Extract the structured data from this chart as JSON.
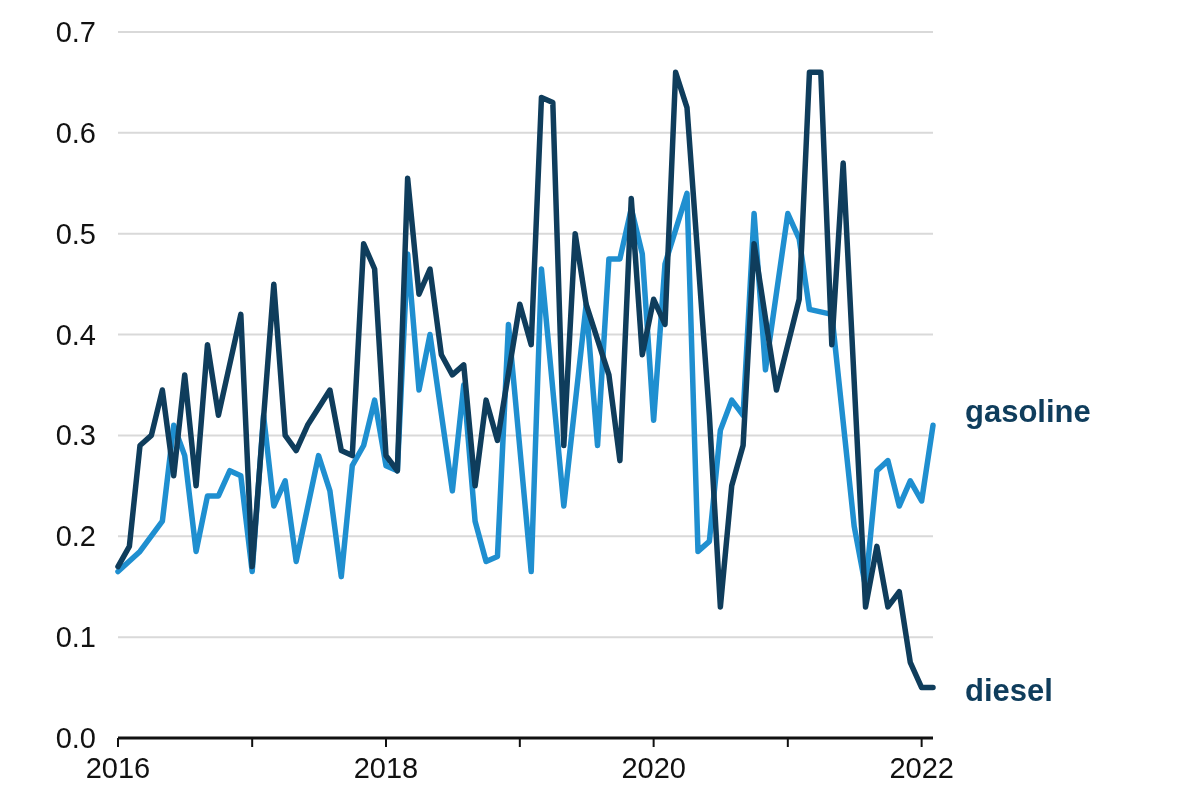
{
  "chart_data": {
    "type": "line",
    "xlim": [
      "2016-01",
      "2022-02"
    ],
    "ylim": [
      0,
      0.7
    ],
    "yticks": [
      {
        "value": 0,
        "label": "0.0"
      },
      0.1,
      0.2,
      0.3,
      0.4,
      0.5,
      0.6,
      0.7
    ],
    "xticks": [
      "2016",
      {
        "value": "2017",
        "label": null
      },
      "2018",
      {
        "value": "2019",
        "label": null
      },
      "2020",
      {
        "value": "2021",
        "label": null
      },
      "2022"
    ],
    "grid": "y",
    "line_style": "solid",
    "marker": "none",
    "series": [
      {
        "name": "gasoline",
        "color": "#1f8fd0",
        "x": [
          "2016-01",
          "2016-03",
          "2016-05",
          "2016-06",
          "2016-07",
          "2016-08",
          "2016-09",
          "2016-10",
          "2016-11",
          "2016-12",
          "2017-01",
          "2017-02",
          "2017-03",
          "2017-04",
          "2017-05",
          "2017-07",
          "2017-08",
          "2017-09",
          "2017-10",
          "2017-11",
          "2017-12",
          "2018-01",
          "2018-02",
          "2018-03",
          "2018-04",
          "2018-05",
          "2018-07",
          "2018-08",
          "2018-09",
          "2018-10",
          "2018-11",
          "2018-12",
          "2019-02",
          "2019-03",
          "2019-05",
          "2019-07",
          "2019-08",
          "2019-09",
          "2019-10",
          "2019-11",
          "2019-12",
          "2020-01",
          "2020-02",
          "2020-04",
          "2020-05",
          "2020-06",
          "2020-07",
          "2020-08",
          "2020-09",
          "2020-10",
          "2020-11",
          "2021-01",
          "2021-02",
          "2021-03",
          "2021-05",
          "2021-07",
          "2021-08",
          "2021-09",
          "2021-10",
          "2021-11",
          "2021-12",
          "2022-01",
          "2022-02"
        ],
        "values": [
          0.165,
          0.185,
          0.215,
          0.31,
          0.28,
          0.185,
          0.24,
          0.24,
          0.265,
          0.26,
          0.165,
          0.32,
          0.23,
          0.255,
          0.175,
          0.28,
          0.245,
          0.16,
          0.27,
          0.29,
          0.335,
          0.27,
          0.265,
          0.48,
          0.345,
          0.4,
          0.245,
          0.35,
          0.215,
          0.175,
          0.18,
          0.41,
          0.165,
          0.465,
          0.23,
          0.43,
          0.29,
          0.475,
          0.475,
          0.525,
          0.48,
          0.315,
          0.47,
          0.54,
          0.185,
          0.195,
          0.305,
          0.335,
          0.32,
          0.52,
          0.365,
          0.52,
          0.495,
          0.425,
          0.42,
          0.21,
          0.15,
          0.265,
          0.275,
          0.23,
          0.255,
          0.235,
          0.31
        ]
      },
      {
        "name": "diesel",
        "color": "#0f3d5c",
        "x": [
          "2016-01",
          "2016-02",
          "2016-03",
          "2016-04",
          "2016-05",
          "2016-06",
          "2016-07",
          "2016-08",
          "2016-09",
          "2016-10",
          "2016-12",
          "2017-01",
          "2017-03",
          "2017-04",
          "2017-05",
          "2017-06",
          "2017-08",
          "2017-09",
          "2017-10",
          "2017-11",
          "2017-12",
          "2018-01",
          "2018-02",
          "2018-03",
          "2018-04",
          "2018-05",
          "2018-06",
          "2018-07",
          "2018-08",
          "2018-09",
          "2018-10",
          "2018-11",
          "2019-01",
          "2019-02",
          "2019-03",
          "2019-04",
          "2019-05",
          "2019-06",
          "2019-07",
          "2019-09",
          "2019-10",
          "2019-11",
          "2019-12",
          "2020-01",
          "2020-02",
          "2020-03",
          "2020-04",
          "2020-06",
          "2020-07",
          "2020-08",
          "2020-09",
          "2020-10",
          "2020-12",
          "2021-02",
          "2021-03",
          "2021-04",
          "2021-05",
          "2021-06",
          "2021-08",
          "2021-09",
          "2021-10",
          "2021-11",
          "2021-12",
          "2022-01",
          "2022-02"
        ],
        "values": [
          0.17,
          0.19,
          0.29,
          0.3,
          0.345,
          0.26,
          0.36,
          0.25,
          0.39,
          0.32,
          0.42,
          0.17,
          0.45,
          0.3,
          0.285,
          0.31,
          0.345,
          0.285,
          0.28,
          0.49,
          0.465,
          0.28,
          0.265,
          0.555,
          0.44,
          0.465,
          0.38,
          0.36,
          0.37,
          0.25,
          0.335,
          0.295,
          0.43,
          0.39,
          0.635,
          0.63,
          0.29,
          0.5,
          0.43,
          0.36,
          0.275,
          0.535,
          0.38,
          0.435,
          0.41,
          0.66,
          0.625,
          0.32,
          0.13,
          0.25,
          0.29,
          0.49,
          0.345,
          0.435,
          0.66,
          0.66,
          0.39,
          0.57,
          0.13,
          0.19,
          0.13,
          0.145,
          0.075,
          0.05,
          0.05
        ]
      }
    ]
  }
}
